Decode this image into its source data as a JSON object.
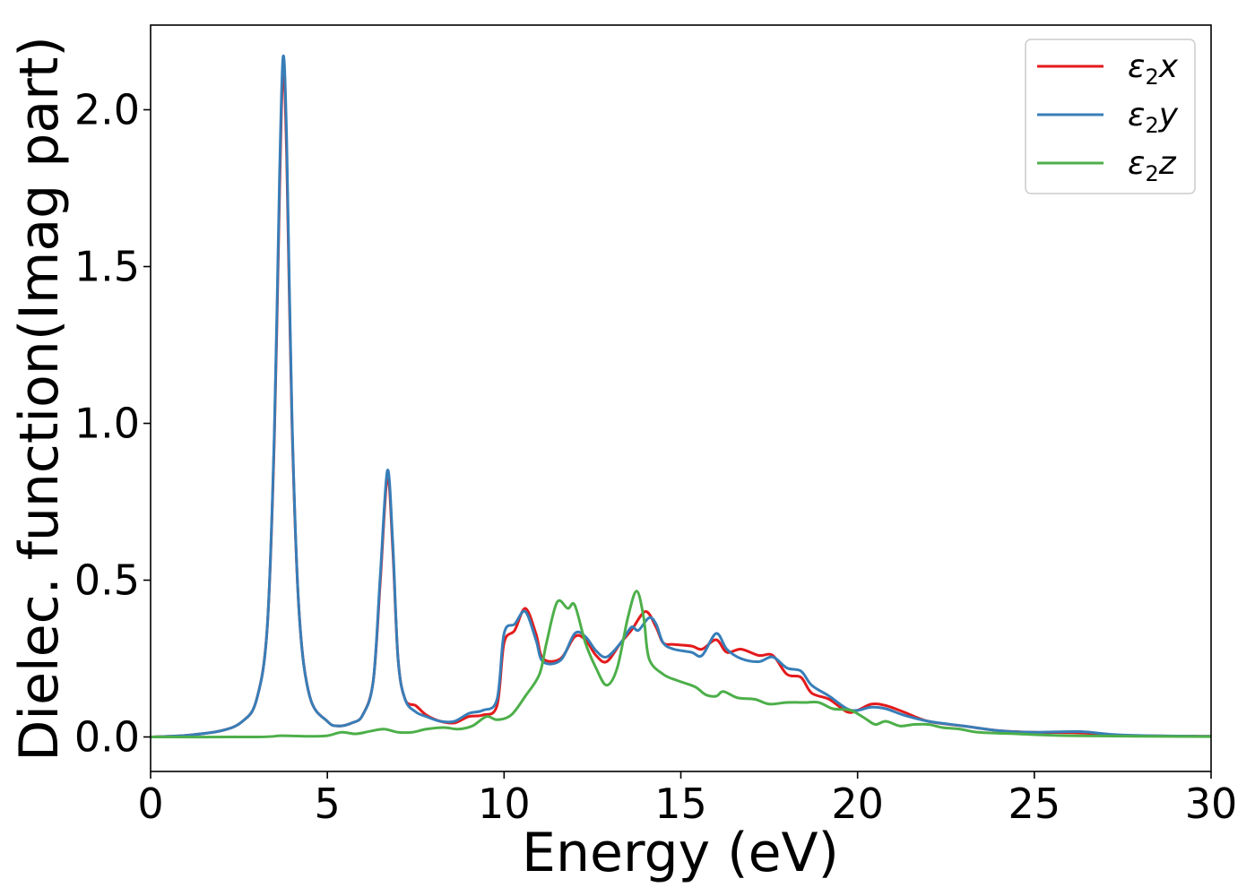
{
  "chart_data": {
    "type": "line",
    "title": "",
    "xlabel": "Energy (eV)",
    "ylabel": "Dielec. function(Imag part)",
    "xlim": [
      0,
      30
    ],
    "ylim": [
      -0.11,
      2.27
    ],
    "grid": false,
    "legend_position": "top-right",
    "x_ticks": [
      0,
      5,
      10,
      15,
      20,
      25,
      30
    ],
    "x_tick_labels": [
      "0",
      "5",
      "10",
      "15",
      "20",
      "25",
      "30"
    ],
    "y_ticks": [
      0.0,
      0.5,
      1.0,
      1.5,
      2.0
    ],
    "y_tick_labels": [
      "0.0",
      "0.5",
      "1.0",
      "1.5",
      "2.0"
    ],
    "series": [
      {
        "name": "ε₂x",
        "legend": {
          "base": "ε",
          "sub": "2",
          "suffix": "x"
        },
        "color": "#e41a1c",
        "points": [
          [
            0,
            0
          ],
          [
            1,
            0.005
          ],
          [
            2,
            0.02
          ],
          [
            2.6,
            0.05
          ],
          [
            3,
            0.12
          ],
          [
            3.3,
            0.35
          ],
          [
            3.5,
            0.95
          ],
          [
            3.65,
            1.75
          ],
          [
            3.75,
            2.13
          ],
          [
            3.85,
            1.85
          ],
          [
            4.0,
            1.0
          ],
          [
            4.2,
            0.4
          ],
          [
            4.5,
            0.13
          ],
          [
            5,
            0.05
          ],
          [
            5.3,
            0.035
          ],
          [
            5.7,
            0.045
          ],
          [
            6.0,
            0.07
          ],
          [
            6.3,
            0.18
          ],
          [
            6.5,
            0.5
          ],
          [
            6.7,
            0.83
          ],
          [
            6.85,
            0.6
          ],
          [
            7.0,
            0.25
          ],
          [
            7.2,
            0.12
          ],
          [
            7.5,
            0.1
          ],
          [
            7.8,
            0.07
          ],
          [
            8.2,
            0.05
          ],
          [
            8.6,
            0.045
          ],
          [
            9.0,
            0.065
          ],
          [
            9.4,
            0.07
          ],
          [
            9.8,
            0.1
          ],
          [
            10.0,
            0.3
          ],
          [
            10.3,
            0.34
          ],
          [
            10.6,
            0.41
          ],
          [
            10.9,
            0.33
          ],
          [
            11.1,
            0.25
          ],
          [
            11.6,
            0.25
          ],
          [
            12.0,
            0.32
          ],
          [
            12.3,
            0.31
          ],
          [
            12.6,
            0.26
          ],
          [
            12.9,
            0.24
          ],
          [
            13.3,
            0.3
          ],
          [
            13.6,
            0.34
          ],
          [
            14.0,
            0.4
          ],
          [
            14.3,
            0.35
          ],
          [
            14.5,
            0.3
          ],
          [
            14.8,
            0.295
          ],
          [
            15.3,
            0.29
          ],
          [
            15.6,
            0.28
          ],
          [
            16.0,
            0.31
          ],
          [
            16.3,
            0.27
          ],
          [
            16.7,
            0.28
          ],
          [
            17.2,
            0.26
          ],
          [
            17.6,
            0.26
          ],
          [
            18.0,
            0.2
          ],
          [
            18.4,
            0.19
          ],
          [
            18.7,
            0.14
          ],
          [
            19.2,
            0.12
          ],
          [
            19.7,
            0.08
          ],
          [
            20.0,
            0.085
          ],
          [
            20.4,
            0.105
          ],
          [
            20.8,
            0.1
          ],
          [
            21.3,
            0.08
          ],
          [
            22.0,
            0.05
          ],
          [
            23.0,
            0.035
          ],
          [
            24.0,
            0.02
          ],
          [
            25.0,
            0.015
          ],
          [
            26.3,
            0.013
          ],
          [
            27.5,
            0.005
          ],
          [
            30,
            0.002
          ]
        ]
      },
      {
        "name": "ε₂y",
        "legend": {
          "base": "ε",
          "sub": "2",
          "suffix": "y"
        },
        "color": "#377eb8",
        "points": [
          [
            0,
            0
          ],
          [
            1,
            0.005
          ],
          [
            2,
            0.02
          ],
          [
            2.6,
            0.05
          ],
          [
            3,
            0.12
          ],
          [
            3.3,
            0.35
          ],
          [
            3.5,
            0.97
          ],
          [
            3.65,
            1.8
          ],
          [
            3.75,
            2.17
          ],
          [
            3.85,
            1.9
          ],
          [
            4.0,
            1.02
          ],
          [
            4.2,
            0.4
          ],
          [
            4.5,
            0.13
          ],
          [
            5,
            0.05
          ],
          [
            5.3,
            0.035
          ],
          [
            5.7,
            0.045
          ],
          [
            6.0,
            0.07
          ],
          [
            6.3,
            0.18
          ],
          [
            6.5,
            0.52
          ],
          [
            6.7,
            0.85
          ],
          [
            6.85,
            0.62
          ],
          [
            7.0,
            0.25
          ],
          [
            7.2,
            0.12
          ],
          [
            7.5,
            0.08
          ],
          [
            7.8,
            0.065
          ],
          [
            8.2,
            0.05
          ],
          [
            8.6,
            0.05
          ],
          [
            9.0,
            0.075
          ],
          [
            9.4,
            0.085
          ],
          [
            9.8,
            0.12
          ],
          [
            10.0,
            0.33
          ],
          [
            10.3,
            0.36
          ],
          [
            10.6,
            0.4
          ],
          [
            10.9,
            0.31
          ],
          [
            11.1,
            0.24
          ],
          [
            11.6,
            0.245
          ],
          [
            12.0,
            0.33
          ],
          [
            12.3,
            0.32
          ],
          [
            12.6,
            0.275
          ],
          [
            12.9,
            0.255
          ],
          [
            13.3,
            0.3
          ],
          [
            13.6,
            0.35
          ],
          [
            13.8,
            0.34
          ],
          [
            14.1,
            0.38
          ],
          [
            14.3,
            0.36
          ],
          [
            14.5,
            0.3
          ],
          [
            14.8,
            0.28
          ],
          [
            15.3,
            0.27
          ],
          [
            15.6,
            0.26
          ],
          [
            16.0,
            0.33
          ],
          [
            16.3,
            0.28
          ],
          [
            16.7,
            0.25
          ],
          [
            17.2,
            0.24
          ],
          [
            17.6,
            0.255
          ],
          [
            18.0,
            0.22
          ],
          [
            18.4,
            0.21
          ],
          [
            18.7,
            0.165
          ],
          [
            19.2,
            0.13
          ],
          [
            19.7,
            0.09
          ],
          [
            20.0,
            0.085
          ],
          [
            20.4,
            0.095
          ],
          [
            20.8,
            0.09
          ],
          [
            21.3,
            0.07
          ],
          [
            22.0,
            0.05
          ],
          [
            23.0,
            0.035
          ],
          [
            24.0,
            0.02
          ],
          [
            25.0,
            0.015
          ],
          [
            26.3,
            0.017
          ],
          [
            27.5,
            0.006
          ],
          [
            30,
            0.002
          ]
        ]
      },
      {
        "name": "ε₂z",
        "legend": {
          "base": "ε",
          "sub": "2",
          "suffix": "z"
        },
        "color": "#4daf4a",
        "points": [
          [
            0,
            0
          ],
          [
            3,
            0
          ],
          [
            3.7,
            0.004
          ],
          [
            4.5,
            0.002
          ],
          [
            5.0,
            0.004
          ],
          [
            5.4,
            0.015
          ],
          [
            5.8,
            0.01
          ],
          [
            6.2,
            0.018
          ],
          [
            6.6,
            0.025
          ],
          [
            7.0,
            0.015
          ],
          [
            7.4,
            0.015
          ],
          [
            7.8,
            0.025
          ],
          [
            8.3,
            0.03
          ],
          [
            8.7,
            0.025
          ],
          [
            9.1,
            0.035
          ],
          [
            9.5,
            0.065
          ],
          [
            9.8,
            0.055
          ],
          [
            10.2,
            0.07
          ],
          [
            10.6,
            0.13
          ],
          [
            11.0,
            0.2
          ],
          [
            11.2,
            0.3
          ],
          [
            11.5,
            0.43
          ],
          [
            11.8,
            0.41
          ],
          [
            12.0,
            0.42
          ],
          [
            12.3,
            0.3
          ],
          [
            12.6,
            0.22
          ],
          [
            12.9,
            0.165
          ],
          [
            13.2,
            0.22
          ],
          [
            13.5,
            0.38
          ],
          [
            13.75,
            0.465
          ],
          [
            13.95,
            0.38
          ],
          [
            14.1,
            0.25
          ],
          [
            14.5,
            0.2
          ],
          [
            14.9,
            0.18
          ],
          [
            15.4,
            0.16
          ],
          [
            15.7,
            0.135
          ],
          [
            16.0,
            0.13
          ],
          [
            16.2,
            0.145
          ],
          [
            16.6,
            0.125
          ],
          [
            17.1,
            0.12
          ],
          [
            17.5,
            0.105
          ],
          [
            18.0,
            0.11
          ],
          [
            18.5,
            0.11
          ],
          [
            18.9,
            0.11
          ],
          [
            19.3,
            0.09
          ],
          [
            19.8,
            0.085
          ],
          [
            20.2,
            0.06
          ],
          [
            20.5,
            0.04
          ],
          [
            20.8,
            0.05
          ],
          [
            21.2,
            0.035
          ],
          [
            21.6,
            0.04
          ],
          [
            22.0,
            0.04
          ],
          [
            22.4,
            0.03
          ],
          [
            22.9,
            0.025
          ],
          [
            23.4,
            0.015
          ],
          [
            24.5,
            0.01
          ],
          [
            26,
            0.004
          ],
          [
            30,
            0.001
          ]
        ]
      }
    ]
  }
}
